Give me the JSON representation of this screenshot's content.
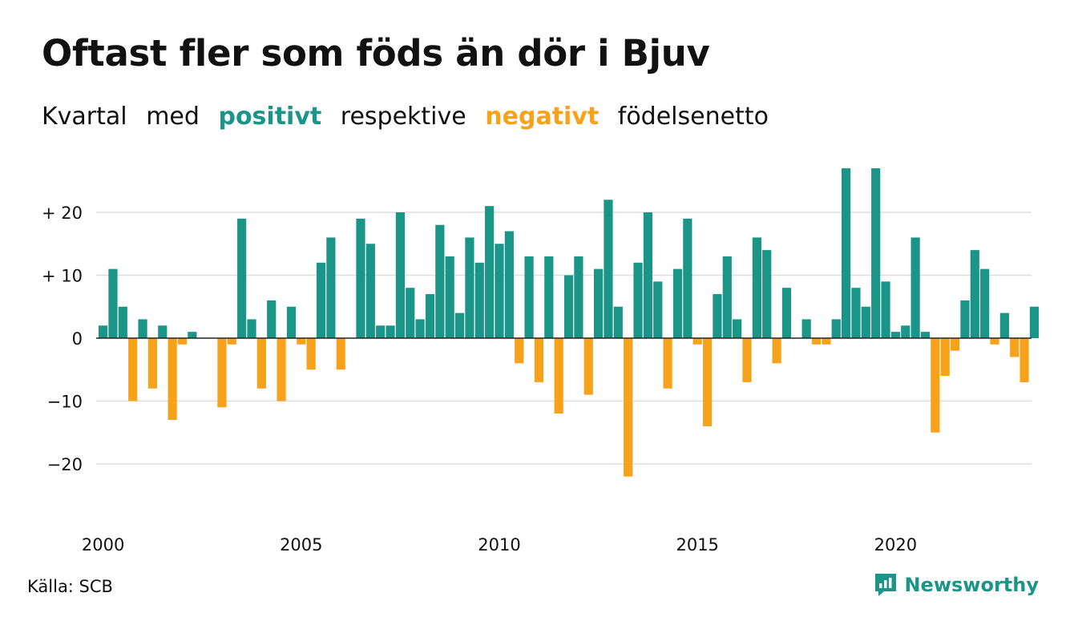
{
  "header": {
    "title": "Oftast fler som föds än dör i Bjuv",
    "subtitle_parts": [
      "Kvartal",
      "med",
      "positivt",
      "respektive",
      "negativt",
      "födelsenetto"
    ]
  },
  "footer": {
    "source": "Källa: SCB",
    "brand": "Newsworthy"
  },
  "colors": {
    "positive": "#1a9587",
    "negative": "#f7a21b",
    "grid": "#dddddd",
    "text": "#111111"
  },
  "chart_data": {
    "type": "bar",
    "title": "Oftast fler som föds än dör i Bjuv",
    "subtitle": "Kvartal med positivt respektive negativt födelsenetto",
    "xlabel": "",
    "ylabel": "",
    "start_year": 2000,
    "quarters_per_year": 4,
    "x_ticks": [
      "2000",
      "2005",
      "2010",
      "2015",
      "2020"
    ],
    "y_ticks": [
      {
        "value": 20,
        "label": "+ 20"
      },
      {
        "value": 10,
        "label": "+ 10"
      },
      {
        "value": 0,
        "label": "0"
      },
      {
        "value": -10,
        "label": "−10"
      },
      {
        "value": -20,
        "label": "−20"
      }
    ],
    "ylim": [
      -27,
      27
    ],
    "grid": true,
    "values": [
      2,
      11,
      5,
      -10,
      3,
      -8,
      2,
      -13,
      -1,
      1,
      0,
      0,
      -11,
      -1,
      19,
      3,
      -8,
      6,
      -10,
      5,
      -1,
      -5,
      12,
      16,
      -5,
      0,
      19,
      15,
      2,
      2,
      20,
      8,
      3,
      7,
      18,
      13,
      4,
      16,
      12,
      21,
      15,
      17,
      -4,
      13,
      -7,
      13,
      -12,
      10,
      13,
      -9,
      11,
      22,
      5,
      -22,
      12,
      20,
      9,
      -8,
      11,
      19,
      -1,
      -14,
      7,
      13,
      3,
      -7,
      16,
      14,
      -4,
      8,
      0,
      3,
      -1,
      -1,
      3,
      27,
      8,
      5,
      27,
      9,
      1,
      2,
      16,
      1,
      -15,
      -6,
      -2,
      6,
      14,
      11,
      -1,
      4,
      -3,
      -7,
      5
    ]
  }
}
